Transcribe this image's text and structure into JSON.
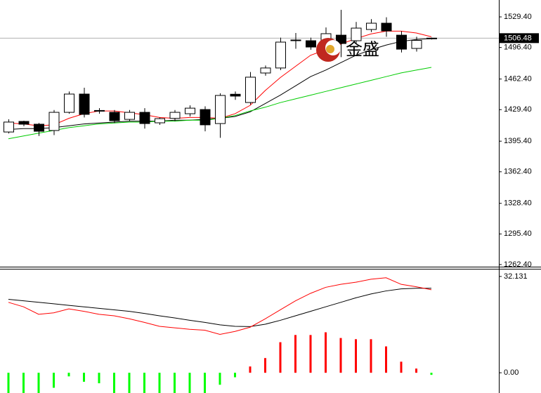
{
  "chart_data": [
    {
      "type": "candlestick",
      "watermark": "金盛",
      "last_price": 1506.48,
      "up_color": "#ffffff",
      "down_color": "#000000",
      "open": [
        1405.3,
        1416.7,
        1413.7,
        1406.9,
        1426.5,
        1446.2,
        1428.0,
        1426.5,
        1418.9,
        1426.5,
        1415.2,
        1420.0,
        1425.0,
        1429.5,
        1414.4,
        1446.0,
        1437.1,
        1468.9,
        1474.3,
        1504.0,
        1503.7,
        1488.5,
        1509.7,
        1503.7,
        1515.8,
        1522.6,
        1509.7,
        1495.4,
        1506.1
      ],
      "high": [
        1419.0,
        1417.5,
        1415.0,
        1429.0,
        1449.0,
        1453.0,
        1431.0,
        1429.0,
        1429.0,
        1431.0,
        1421.0,
        1429.0,
        1434.0,
        1433.0,
        1447.0,
        1449.0,
        1470.0,
        1477.0,
        1507.0,
        1512.0,
        1507.0,
        1518.0,
        1537.0,
        1524.0,
        1527.0,
        1529.0,
        1514.0,
        1508.0,
        1507.0
      ],
      "low": [
        1403.8,
        1411.5,
        1401.0,
        1402.0,
        1425.0,
        1421.0,
        1425.0,
        1415.0,
        1417.0,
        1409.0,
        1413.0,
        1417.0,
        1422.0,
        1406.0,
        1399.0,
        1440.0,
        1435.0,
        1466.0,
        1472.0,
        1495.0,
        1494.0,
        1484.0,
        1486.0,
        1500.0,
        1513.0,
        1508.0,
        1491.0,
        1492.0,
        1505.0
      ],
      "close": [
        1416.0,
        1413.7,
        1406.1,
        1426.5,
        1446.2,
        1424.3,
        1428.5,
        1417.5,
        1426.5,
        1414.4,
        1419.7,
        1426.5,
        1431.0,
        1413.0,
        1444.7,
        1444.0,
        1464.4,
        1474.3,
        1502.2,
        1504.5,
        1496.9,
        1511.3,
        1500.7,
        1517.3,
        1522.6,
        1514.3,
        1494.6,
        1504.1,
        1506.5
      ],
      "overlays": [
        {
          "color": "#ff0000",
          "values": [
            1415,
            1414,
            1412,
            1413,
            1420,
            1425,
            1428,
            1428,
            1426,
            1424,
            1421,
            1420,
            1421,
            1421,
            1420,
            1425,
            1434,
            1450,
            1464,
            1476,
            1488,
            1494,
            1500,
            1506,
            1511,
            1514,
            1514,
            1512,
            1508
          ]
        },
        {
          "color": "#000000",
          "values": [
            1408,
            1409,
            1409,
            1410,
            1412,
            1414,
            1415,
            1416,
            1417,
            1417,
            1417,
            1418,
            1418,
            1419,
            1420,
            1422,
            1427,
            1436,
            1445,
            1455,
            1465,
            1472,
            1480,
            1488,
            1494,
            1499,
            1503,
            1505,
            1506
          ]
        },
        {
          "color": "#00cc00",
          "values": [
            1398,
            1401,
            1404,
            1407,
            1410,
            1412,
            1414,
            1415,
            1416,
            1416,
            1417,
            1417,
            1418,
            1418,
            1420,
            1423,
            1428,
            1432,
            1437,
            1441,
            1445,
            1449,
            1453,
            1457,
            1461,
            1465,
            1469,
            1472,
            1475
          ]
        }
      ],
      "ylim": [
        1260.1,
        1547.6
      ],
      "yticks": [
        {
          "value": 1529.4,
          "label": "1529.40"
        },
        {
          "value": 1496.4,
          "label": "1496.40"
        },
        {
          "value": 1462.4,
          "label": "1462.40"
        },
        {
          "value": 1429.4,
          "label": "1429.40"
        },
        {
          "value": 1395.4,
          "label": "1395.40"
        },
        {
          "value": 1362.4,
          "label": "1362.40"
        },
        {
          "value": 1328.4,
          "label": "1328.40"
        },
        {
          "value": 1295.4,
          "label": "1295.40"
        },
        {
          "value": 1262.4,
          "label": "1262.40"
        }
      ]
    },
    {
      "type": "macd",
      "up_color": "#ff0000",
      "down_color": "#00ff00",
      "histogram": [
        -7,
        -7,
        -7,
        -5,
        -1.2,
        -3,
        -3.5,
        -7,
        -7,
        -7,
        -7,
        -7,
        -7,
        -7,
        -4,
        -1.5,
        2.1,
        4.9,
        10.2,
        12.6,
        12.6,
        13.5,
        11.6,
        11.2,
        11.2,
        8.8,
        3.7,
        1.4,
        -0.7
      ],
      "lines": [
        {
          "color": "#000000",
          "values": [
            24.5,
            24.0,
            23.5,
            23.0,
            22.5,
            22.0,
            21.5,
            21.0,
            20.5,
            19.8,
            19.0,
            18.3,
            17.5,
            16.8,
            16.0,
            15.5,
            15.4,
            16.2,
            17.5,
            19.0,
            20.5,
            22.0,
            23.5,
            25.0,
            26.3,
            27.3,
            28.0,
            28.2,
            28.2
          ]
        },
        {
          "color": "#ff0000",
          "values": [
            23.5,
            22.0,
            19.5,
            20.0,
            21.3,
            20.5,
            19.5,
            19.0,
            18.0,
            16.8,
            15.5,
            15.0,
            14.5,
            14.2,
            12.8,
            13.8,
            15.2,
            18.0,
            21.0,
            24.0,
            26.5,
            28.5,
            29.5,
            30.2,
            31.2,
            31.7,
            29.5,
            28.7,
            27.7
          ]
        }
      ],
      "ylim": [
        -6.75,
        34.69
      ],
      "yticks": [
        32.131,
        {
          "value": 0,
          "label": "0.00"
        }
      ]
    }
  ]
}
